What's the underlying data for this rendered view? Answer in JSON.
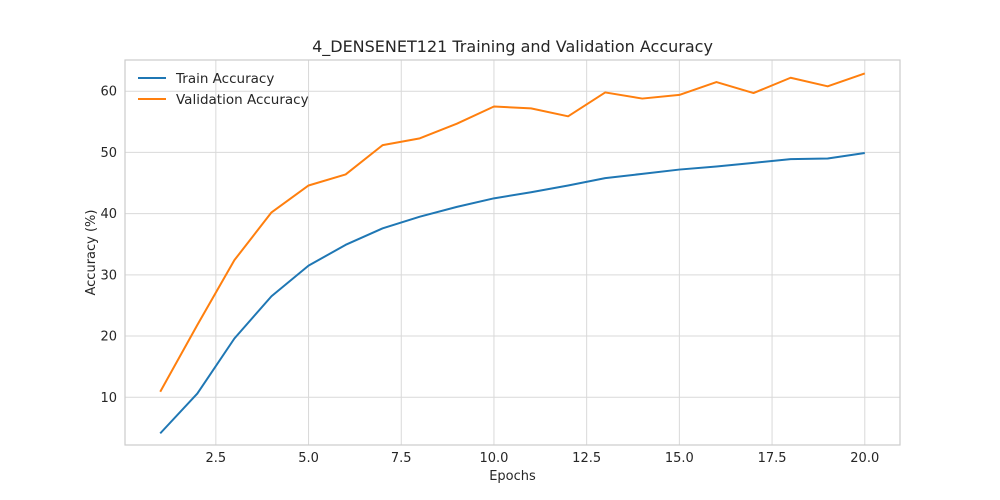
{
  "chart_data": {
    "type": "line",
    "title": "4_DENSENET121 Training and Validation Accuracy",
    "xlabel": "Epochs",
    "ylabel": "Accuracy (%)",
    "x": [
      1,
      2,
      3,
      4,
      5,
      6,
      7,
      8,
      9,
      10,
      11,
      12,
      13,
      14,
      15,
      16,
      17,
      18,
      19,
      20
    ],
    "xlim": [
      0.05,
      20.95
    ],
    "ylim": [
      2.2,
      65.1
    ],
    "xticks": [
      2.5,
      5.0,
      7.5,
      10.0,
      12.5,
      15.0,
      17.5,
      20.0
    ],
    "xtick_labels": [
      "2.5",
      "5.0",
      "7.5",
      "10.0",
      "12.5",
      "15.0",
      "17.5",
      "20.0"
    ],
    "yticks": [
      10,
      20,
      30,
      40,
      50,
      60
    ],
    "ytick_labels": [
      "10",
      "20",
      "30",
      "40",
      "50",
      "60"
    ],
    "grid": true,
    "legend_position": "top-left",
    "series": [
      {
        "name": "Train Accuracy",
        "color": "#1f77b4",
        "values": [
          4.1,
          10.6,
          19.6,
          26.5,
          31.5,
          34.9,
          37.6,
          39.5,
          41.1,
          42.5,
          43.5,
          44.6,
          45.8,
          46.5,
          47.2,
          47.7,
          48.3,
          48.9,
          49.0,
          49.9
        ]
      },
      {
        "name": "Validation Accuracy",
        "color": "#ff7f0e",
        "values": [
          10.9,
          21.8,
          32.4,
          40.2,
          44.6,
          46.4,
          51.2,
          52.3,
          54.7,
          57.5,
          57.2,
          55.9,
          59.8,
          58.8,
          59.4,
          61.5,
          59.7,
          62.2,
          60.8,
          62.9
        ]
      }
    ]
  }
}
